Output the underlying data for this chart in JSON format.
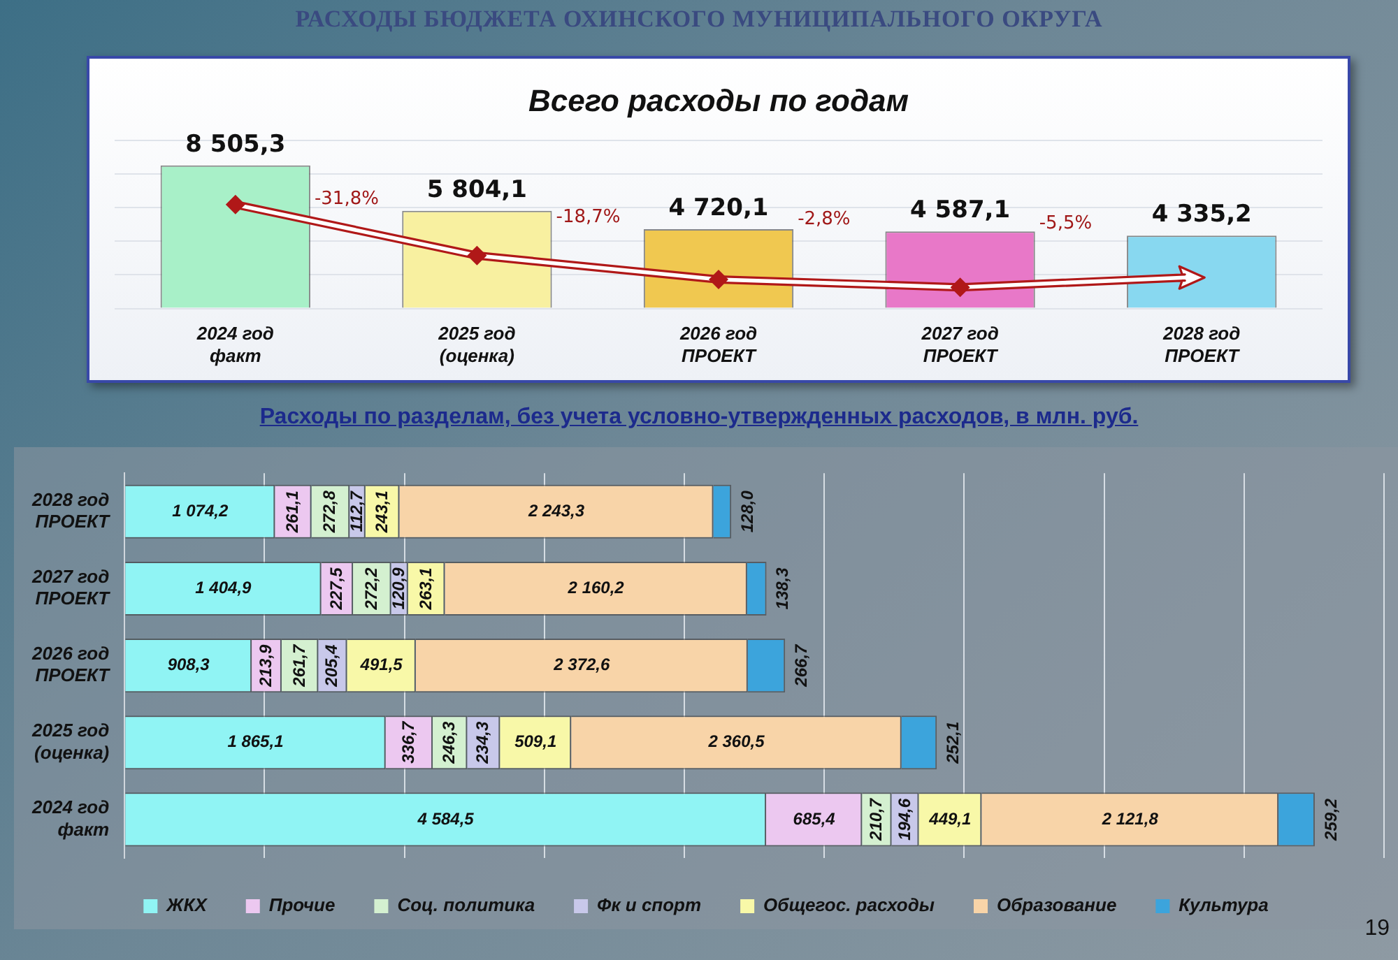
{
  "chart_data": [
    {
      "type": "bar",
      "title": "РАСХОДЫ БЮДЖЕТА ОХИНСКОГО МУНИЦИПАЛЬНОГО ОКРУГА",
      "subtitle": "Всего расходы по годам",
      "categories": [
        "2024 год факт",
        "2025 год (оценка)",
        "2026 год ПРОЕКТ",
        "2027 год ПРОЕКТ",
        "2028 год ПРОЕКТ"
      ],
      "values": [
        8505.3,
        5804.1,
        4720.1,
        4587.1,
        4335.2
      ],
      "value_labels": [
        "8 505,3",
        "5 804,1",
        "4 720,1",
        "4 587,1",
        "4 335,2"
      ],
      "colors": [
        "#a8f0c8",
        "#f8f0a0",
        "#f0c850",
        "#e878c8",
        "#88d8f0"
      ],
      "grid": "y",
      "tick_labels": "x",
      "legend": false,
      "annotations": [
        "-31,8%",
        "-18,7%",
        "-2,8%",
        "-5,5%"
      ]
    },
    {
      "type": "bar",
      "orientation": "horizontal",
      "stacked": true,
      "title": "Расходы по разделам, без учета условно-утвержденных расходов,  в млн. руб.",
      "categories": [
        "2028 год ПРОЕКТ",
        "2027 год ПРОЕКТ",
        "2026 год ПРОЕКТ",
        "2025 год (оценка)",
        "2024 год факт"
      ],
      "series": [
        {
          "name": "ЖКХ",
          "color": "#90f4f4",
          "values": [
            1074.2,
            1404.9,
            908.3,
            1865.1,
            4584.5
          ],
          "value_labels": [
            "1 074,2",
            "1 404,9",
            "908,3",
            "1 865,1",
            "4 584,5"
          ]
        },
        {
          "name": "Прочие",
          "color": "#ecc8f0",
          "values": [
            261.1,
            227.5,
            213.9,
            336.7,
            685.4
          ],
          "value_labels": [
            "261,1",
            "227,5",
            "213,9",
            "336,7",
            "685,4"
          ]
        },
        {
          "name": "Соц. политика",
          "color": "#d4f0d0",
          "values": [
            272.8,
            272.2,
            261.7,
            246.3,
            210.7
          ],
          "value_labels": [
            "272,8",
            "272,2",
            "261,7",
            "246,3",
            "210,7"
          ]
        },
        {
          "name": "Фк и спорт",
          "color": "#c8c8ea",
          "values": [
            112.7,
            120.9,
            205.4,
            234.3,
            194.6
          ],
          "value_labels": [
            "112,7",
            "120,9",
            "205,4",
            "234,3",
            "194,6"
          ]
        },
        {
          "name": "Общегос. расходы",
          "color": "#f8f8a8",
          "values": [
            243.1,
            263.1,
            491.5,
            509.1,
            449.1
          ],
          "value_labels": [
            "243,1",
            "263,1",
            "491,5",
            "509,1",
            "449,1"
          ]
        },
        {
          "name": "Образование",
          "color": "#f8d4a8",
          "values": [
            2243.3,
            2160.2,
            2372.6,
            2360.5,
            2121.8
          ],
          "value_labels": [
            "2 243,3",
            "2 160,2",
            "2 372,6",
            "2 360,5",
            "2 121,8"
          ]
        },
        {
          "name": "Культура",
          "color": "#3ca4dc",
          "values": [
            128.0,
            138.3,
            266.7,
            252.1,
            259.2
          ],
          "value_labels": [
            "128,0",
            "138,3",
            "266,7",
            "252,1",
            "259,2"
          ]
        }
      ],
      "grid": "x",
      "tick_labels": "y",
      "legend": "bottom",
      "annotations": [
        "19"
      ]
    }
  ]
}
